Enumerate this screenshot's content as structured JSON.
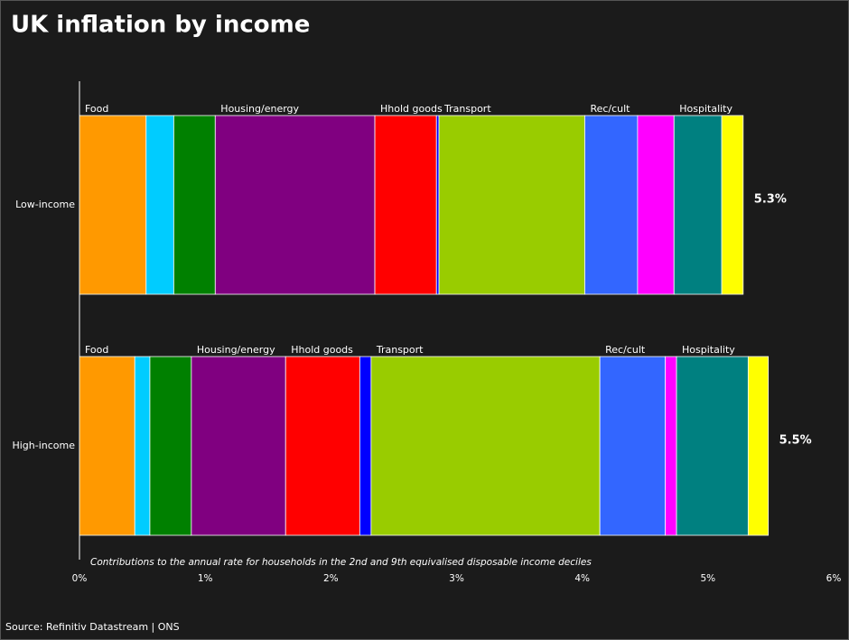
{
  "chart_data": {
    "type": "stacked_barh",
    "title": "UK inflation by income",
    "note": "Contributions to the annual rate for households in the 2nd and 9th equivalised disposable income deciles",
    "source": "Source: Refinitiv Datastream | ONS",
    "categories": [
      "Low-income",
      "High-income"
    ],
    "series": [
      {
        "name": "Food",
        "color": "#ff9900",
        "values": [
          0.53,
          0.44
        ]
      },
      {
        "name": null,
        "color": "#00ccff",
        "values": [
          0.22,
          0.12
        ]
      },
      {
        "name": null,
        "color": "#008000",
        "values": [
          0.33,
          0.33
        ]
      },
      {
        "name": "Housing/energy",
        "color": "#800080",
        "values": [
          1.27,
          0.75
        ]
      },
      {
        "name": "Hhold goods",
        "color": "#ff0000",
        "values": [
          0.49,
          0.59
        ]
      },
      {
        "name": null,
        "color": "#0000ff",
        "values": [
          0.02,
          0.09
        ]
      },
      {
        "name": "Transport",
        "color": "#99cc00",
        "values": [
          1.16,
          1.82
        ]
      },
      {
        "name": "Rec/cult",
        "color": "#3366ff",
        "values": [
          0.42,
          0.52
        ]
      },
      {
        "name": null,
        "color": "#ff00ff",
        "values": [
          0.29,
          0.09
        ]
      },
      {
        "name": "Hospitality",
        "color": "#008080",
        "values": [
          0.38,
          0.57
        ]
      },
      {
        "name": null,
        "color": "#ffff00",
        "values": [
          0.17,
          0.16
        ]
      }
    ],
    "totals": {
      "values": [
        5.3,
        5.5
      ],
      "value_labels": [
        "5.3%",
        "5.5%"
      ]
    },
    "xlim": [
      0,
      6
    ],
    "xticks": [
      {
        "value": 0,
        "label": "0%"
      },
      {
        "value": 1,
        "label": "1%"
      },
      {
        "value": 2,
        "label": "2%"
      },
      {
        "value": 3,
        "label": "3%"
      },
      {
        "value": 4,
        "label": "4%"
      },
      {
        "value": 5,
        "label": "5%"
      },
      {
        "value": 6,
        "label": "6%"
      }
    ]
  }
}
